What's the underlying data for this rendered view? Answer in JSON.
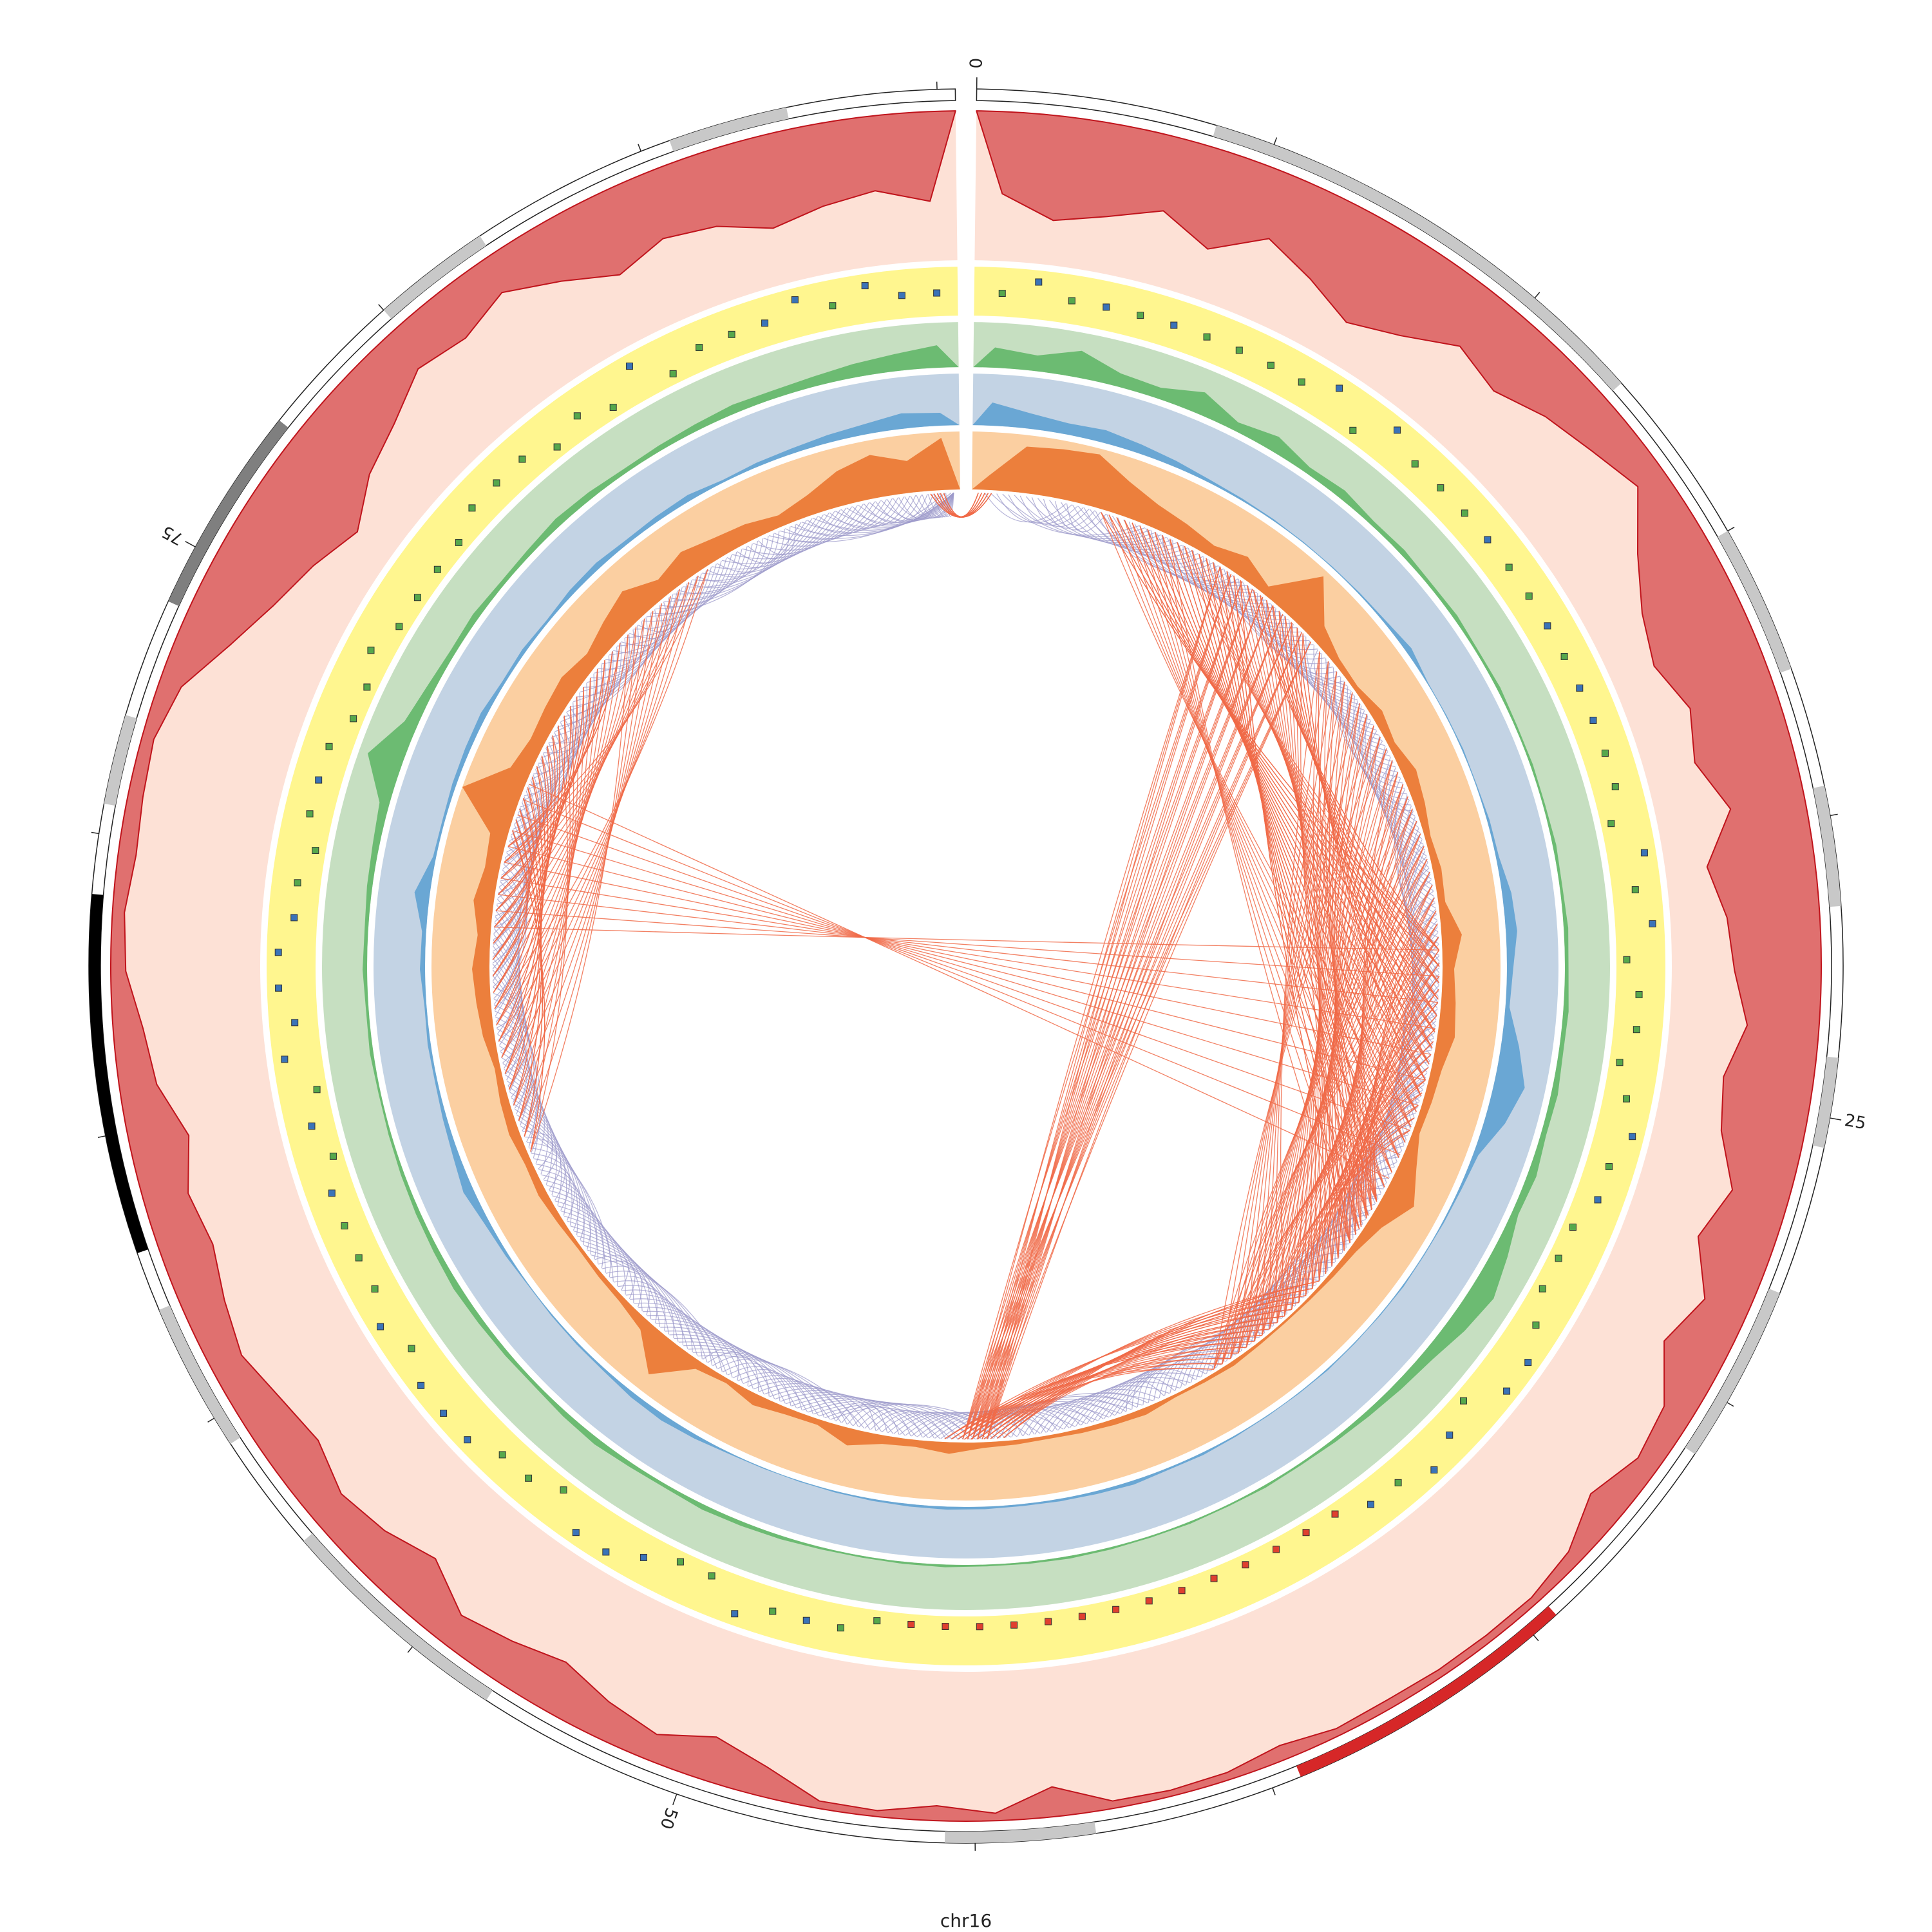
{
  "chromosome": {
    "name": "chr16",
    "length_mb": 90.3,
    "tick_labels": [
      "0",
      "25",
      "50",
      "75"
    ]
  },
  "colors": {
    "ideogram_gray": "#c8c8c8",
    "ideogram_dark": "#7f7f7f",
    "ideogram_black": "#000000",
    "ideogram_red": "#d62728",
    "red_track_bg": "#fde1d6",
    "red_track_fill": "#e0706f",
    "red_track_line": "#c0141c",
    "yellow_track_bg": "#fff68f",
    "marker_blue": "#3a73b8",
    "marker_green": "#56a84c",
    "marker_red": "#e0402f",
    "green_track_bg": "#c6dfc1",
    "green_track_fill": "#6cbb72",
    "blue_track_bg": "#c3d3e4",
    "blue_track_fill": "#6aa7d4",
    "orange_track_bg": "#fbcfa1",
    "orange_track_fill": "#ec7f3c",
    "link_purple": "#9d9bcb",
    "link_red": "#f06a48"
  },
  "ideogram_bands": [
    {
      "start": 4,
      "end": 12,
      "stain": "gray"
    },
    {
      "start": 15,
      "end": 17.5,
      "stain": "gray"
    },
    {
      "start": 19.5,
      "end": 21.5,
      "stain": "gray"
    },
    {
      "start": 24,
      "end": 25.5,
      "stain": "gray"
    },
    {
      "start": 28,
      "end": 31,
      "stain": "gray"
    },
    {
      "start": 34.5,
      "end": 37,
      "stain": "red"
    },
    {
      "start": 37,
      "end": 39.5,
      "stain": "red"
    },
    {
      "start": 43,
      "end": 45.5,
      "stain": "gray"
    },
    {
      "start": 53.5,
      "end": 57.5,
      "stain": "gray"
    },
    {
      "start": 59.5,
      "end": 62,
      "stain": "gray"
    },
    {
      "start": 63,
      "end": 69,
      "stain": "black"
    },
    {
      "start": 70.5,
      "end": 72,
      "stain": "gray"
    },
    {
      "start": 74,
      "end": 77.5,
      "stain": "dark"
    },
    {
      "start": 80,
      "end": 82,
      "stain": "gray"
    },
    {
      "start": 85.5,
      "end": 87.5,
      "stain": "gray"
    }
  ],
  "tracks": {
    "red_profile": [
      0.55,
      0.7,
      0.62,
      0.5,
      0.66,
      0.45,
      0.58,
      0.72,
      0.6,
      0.42,
      0.5,
      0.38,
      0.3,
      0.2,
      0.45,
      0.62,
      0.7,
      0.58,
      0.66,
      0.5,
      0.72,
      0.62,
      0.58,
      0.48,
      0.6,
      0.55,
      0.38,
      0.5,
      0.3,
      0.42,
      0.2,
      0.15,
      0.25,
      0.1,
      0.05,
      0.05,
      0.05,
      0.06,
      0.05,
      0.1,
      0.05,
      0.04,
      0.05,
      0.2,
      0.05,
      0.1,
      0.04,
      0.05,
      0.2,
      0.3,
      0.18,
      0.25,
      0.35,
      0.28,
      0.22,
      0.4,
      0.3,
      0.25,
      0.35,
      0.3,
      0.22,
      0.28,
      0.35,
      0.3,
      0.4,
      0.25,
      0.2,
      0.1,
      0.08,
      0.12,
      0.1,
      0.08,
      0.15,
      0.35,
      0.5,
      0.6,
      0.72,
      0.55,
      0.45,
      0.3,
      0.35,
      0.25,
      0.4,
      0.55,
      0.45,
      0.5,
      0.62,
      0.55,
      0.5,
      0.6
    ],
    "green_profile": [
      0.45,
      0.35,
      0.6,
      0.3,
      0.25,
      0.5,
      0.2,
      0.35,
      0.15,
      0.2,
      0.1,
      0.12,
      0.08,
      0.1,
      0.06,
      0.08,
      0.05,
      0.06,
      0.05,
      0.08,
      0.06,
      0.1,
      0.08,
      0.12,
      0.1,
      0.15,
      0.12,
      0.2,
      0.15,
      0.35,
      0.55,
      0.42,
      0.25,
      0.18,
      0.12,
      0.08,
      0.05,
      0.06,
      0.04,
      0.05,
      0.04,
      0.05,
      0.06,
      0.05,
      0.04,
      0.06,
      0.05,
      0.04,
      0.05,
      0.08,
      0.1,
      0.12,
      0.08,
      0.1,
      0.15,
      0.12,
      0.08,
      0.1,
      0.12,
      0.15,
      0.12,
      0.1,
      0.08,
      0.06,
      0.05,
      0.08,
      0.06,
      0.1,
      0.08,
      0.12,
      0.15,
      0.22,
      0.8,
      0.3,
      0.18,
      0.12,
      0.15,
      0.1,
      0.12,
      0.18,
      0.15,
      0.1,
      0.12,
      0.15,
      0.2,
      0.18,
      0.22,
      0.3,
      0.38,
      0.5
    ],
    "blue_profile": [
      0.45,
      0.3,
      0.22,
      0.25,
      0.18,
      0.12,
      0.06,
      0.04,
      0.03,
      0.02,
      0.02,
      0.03,
      0.05,
      0.12,
      0.02,
      0.02,
      0.03,
      0.02,
      0.05,
      0.06,
      0.18,
      0.22,
      0.12,
      0.08,
      0.35,
      0.6,
      0.4,
      0.1,
      0.05,
      0.03,
      0.02,
      0.03,
      0.02,
      0.02,
      0.03,
      0.02,
      0.02,
      0.03,
      0.05,
      0.04,
      0.08,
      0.06,
      0.05,
      0.04,
      0.05,
      0.06,
      0.05,
      0.04,
      0.03,
      0.02,
      0.02,
      0.03,
      0.08,
      0.12,
      0.1,
      0.05,
      0.04,
      0.03,
      0.02,
      0.06,
      0.1,
      0.2,
      0.12,
      0.08,
      0.05,
      0.06,
      0.04,
      0.1,
      0.08,
      0.3,
      0.06,
      0.05,
      0.08,
      0.1,
      0.12,
      0.06,
      0.08,
      0.05,
      0.1,
      0.12,
      0.08,
      0.1,
      0.12,
      0.05,
      0.08,
      0.1,
      0.15,
      0.2,
      0.3,
      0.25
    ],
    "orange_profile": [
      0.25,
      0.8,
      0.85,
      0.9,
      0.6,
      0.4,
      0.3,
      0.2,
      0.35,
      0.15,
      0.9,
      0.3,
      0.12,
      0.08,
      0.2,
      0.12,
      0.25,
      0.18,
      0.1,
      0.15,
      0.12,
      0.35,
      0.2,
      0.25,
      0.3,
      0.18,
      0.15,
      0.12,
      0.3,
      0.55,
      0.25,
      0.12,
      0.08,
      0.05,
      0.04,
      0.05,
      0.08,
      0.06,
      0.05,
      0.12,
      0.1,
      0.08,
      0.06,
      0.08,
      0.1,
      0.2,
      0.12,
      0.15,
      0.3,
      0.1,
      0.12,
      0.2,
      0.08,
      0.15,
      0.7,
      0.2,
      0.1,
      0.08,
      0.06,
      0.1,
      0.15,
      0.12,
      0.18,
      0.15,
      0.1,
      0.2,
      0.25,
      0.3,
      0.22,
      0.35,
      0.25,
      0.3,
      1.0,
      0.35,
      0.25,
      0.3,
      0.35,
      0.25,
      0.4,
      0.55,
      0.3,
      0.45,
      0.35,
      0.3,
      0.2,
      0.35,
      0.6,
      0.75,
      0.55,
      0.9
    ]
  }
}
